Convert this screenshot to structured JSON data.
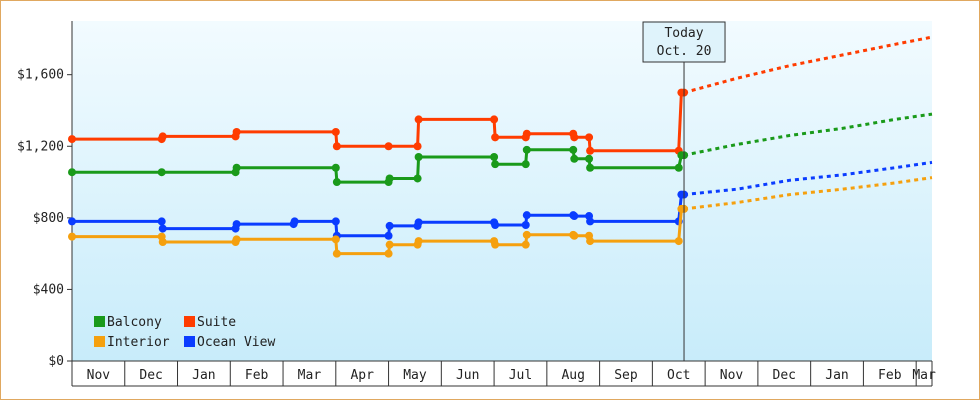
{
  "colors": {
    "balcony": "#1a9a1a",
    "suite": "#ff3c00",
    "interior": "#f5a00e",
    "ocean_view": "#0a3cff",
    "plot_bg_top": "#f2fbff",
    "plot_bg_bottom": "#c8ecfa",
    "frame_border": "#e0a860"
  },
  "today": {
    "line1": "Today",
    "line2": "Oct. 20",
    "x": 11.6
  },
  "chart_data": {
    "type": "line",
    "title": "",
    "xlabel": "",
    "ylabel": "",
    "step": true,
    "xlim": [
      0,
      16.3
    ],
    "ylim": [
      0,
      1900
    ],
    "y_ticks": [
      0,
      400,
      800,
      1200,
      1600
    ],
    "y_tick_labels": [
      "$0",
      "$400",
      "$800",
      "$1,200",
      "$1,600"
    ],
    "months": [
      "Nov",
      "Dec",
      "Jan",
      "Feb",
      "Mar",
      "Apr",
      "May",
      "Jun",
      "Jul",
      "Aug",
      "Sep",
      "Oct",
      "Nov",
      "Dec",
      "Jan",
      "Feb",
      "Mar"
    ],
    "grid": false,
    "legend": {
      "placement": "bottom-left",
      "entries": [
        {
          "key": "balcony",
          "label": "Balcony"
        },
        {
          "key": "suite",
          "label": "Suite"
        },
        {
          "key": "interior",
          "label": "Interior"
        },
        {
          "key": "ocean_view",
          "label": "Ocean View"
        }
      ]
    },
    "series": [
      {
        "key": "suite",
        "name": "Suite",
        "points": [
          [
            0,
            1240
          ],
          [
            1.7,
            1240
          ],
          [
            1.72,
            1255
          ],
          [
            3.1,
            1255
          ],
          [
            3.12,
            1280
          ],
          [
            5.0,
            1280
          ],
          [
            5.02,
            1200
          ],
          [
            6.0,
            1200
          ],
          [
            6.55,
            1200
          ],
          [
            6.57,
            1350
          ],
          [
            8.0,
            1350
          ],
          [
            8.02,
            1250
          ],
          [
            8.6,
            1250
          ],
          [
            8.62,
            1270
          ],
          [
            9.5,
            1270
          ],
          [
            9.52,
            1250
          ],
          [
            9.8,
            1250
          ],
          [
            9.82,
            1175
          ],
          [
            11.5,
            1175
          ],
          [
            11.55,
            1500
          ],
          [
            11.6,
            1500
          ]
        ],
        "forecast": [
          [
            11.6,
            1500
          ],
          [
            12.6,
            1580
          ],
          [
            13.6,
            1650
          ],
          [
            14.6,
            1710
          ],
          [
            15.6,
            1770
          ],
          [
            16.3,
            1810
          ]
        ]
      },
      {
        "key": "balcony",
        "name": "Balcony",
        "points": [
          [
            0,
            1055
          ],
          [
            1.7,
            1055
          ],
          [
            3.1,
            1055
          ],
          [
            3.12,
            1080
          ],
          [
            5.0,
            1080
          ],
          [
            5.02,
            1000
          ],
          [
            6.0,
            1000
          ],
          [
            6.02,
            1020
          ],
          [
            6.55,
            1020
          ],
          [
            6.57,
            1140
          ],
          [
            8.0,
            1140
          ],
          [
            8.02,
            1100
          ],
          [
            8.6,
            1100
          ],
          [
            8.62,
            1180
          ],
          [
            9.5,
            1180
          ],
          [
            9.52,
            1130
          ],
          [
            9.8,
            1130
          ],
          [
            9.82,
            1080
          ],
          [
            11.5,
            1080
          ],
          [
            11.55,
            1150
          ],
          [
            11.6,
            1150
          ]
        ],
        "forecast": [
          [
            11.6,
            1150
          ],
          [
            12.6,
            1210
          ],
          [
            13.6,
            1260
          ],
          [
            14.6,
            1300
          ],
          [
            15.6,
            1350
          ],
          [
            16.3,
            1380
          ]
        ]
      },
      {
        "key": "ocean_view",
        "name": "Ocean View",
        "points": [
          [
            0,
            780
          ],
          [
            1.7,
            780
          ],
          [
            1.72,
            740
          ],
          [
            3.1,
            740
          ],
          [
            3.12,
            765
          ],
          [
            4.2,
            765
          ],
          [
            4.22,
            780
          ],
          [
            5.0,
            780
          ],
          [
            5.02,
            700
          ],
          [
            6.0,
            700
          ],
          [
            6.02,
            755
          ],
          [
            6.55,
            755
          ],
          [
            6.57,
            775
          ],
          [
            8.0,
            775
          ],
          [
            8.02,
            760
          ],
          [
            8.6,
            760
          ],
          [
            8.62,
            815
          ],
          [
            9.5,
            815
          ],
          [
            9.52,
            810
          ],
          [
            9.8,
            810
          ],
          [
            9.82,
            780
          ],
          [
            11.5,
            780
          ],
          [
            11.55,
            930
          ],
          [
            11.6,
            930
          ]
        ],
        "forecast": [
          [
            11.6,
            930
          ],
          [
            12.6,
            960
          ],
          [
            13.6,
            1010
          ],
          [
            14.6,
            1040
          ],
          [
            15.6,
            1080
          ],
          [
            16.3,
            1110
          ]
        ]
      },
      {
        "key": "interior",
        "name": "Interior",
        "points": [
          [
            0,
            695
          ],
          [
            1.7,
            695
          ],
          [
            1.72,
            665
          ],
          [
            3.1,
            665
          ],
          [
            3.12,
            680
          ],
          [
            5.0,
            680
          ],
          [
            5.02,
            600
          ],
          [
            6.0,
            600
          ],
          [
            6.02,
            650
          ],
          [
            6.55,
            650
          ],
          [
            6.57,
            670
          ],
          [
            8.0,
            670
          ],
          [
            8.02,
            650
          ],
          [
            8.6,
            650
          ],
          [
            8.62,
            705
          ],
          [
            9.5,
            705
          ],
          [
            9.52,
            700
          ],
          [
            9.8,
            700
          ],
          [
            9.82,
            670
          ],
          [
            11.5,
            670
          ],
          [
            11.55,
            850
          ],
          [
            11.6,
            850
          ]
        ],
        "forecast": [
          [
            11.6,
            850
          ],
          [
            12.6,
            885
          ],
          [
            13.6,
            930
          ],
          [
            14.6,
            960
          ],
          [
            15.6,
            995
          ],
          [
            16.3,
            1025
          ]
        ]
      }
    ]
  }
}
